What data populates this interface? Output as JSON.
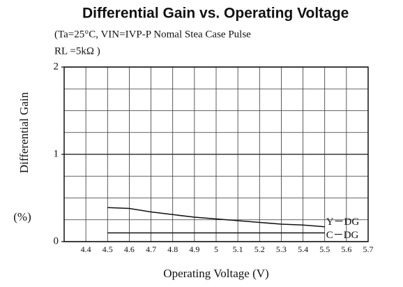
{
  "chart_data": {
    "type": "line",
    "title": "Differential Gain vs. Operating Voltage",
    "subtitle": [
      "(Ta=25°C, VIN=IVP-P Nomal Stea Case Pulse",
      "RL =5kΩ )"
    ],
    "x_label": "Operating Voltage (V)",
    "y_label": "Differential Gain",
    "y_unit": "(%)",
    "x": [
      4.5,
      4.6,
      4.7,
      4.8,
      4.9,
      5.0,
      5.1,
      5.2,
      5.3,
      5.4,
      5.5
    ],
    "series": [
      {
        "name": "Y－DG",
        "color": "#111111",
        "values": [
          0.39,
          0.38,
          0.34,
          0.31,
          0.28,
          0.26,
          0.24,
          0.22,
          0.2,
          0.19,
          0.17
        ]
      },
      {
        "name": "C－DG",
        "color": "#111111",
        "values": [
          0.1,
          0.1,
          0.1,
          0.1,
          0.1,
          0.1,
          0.1,
          0.1,
          0.1,
          0.1,
          0.1
        ]
      }
    ],
    "xlim": [
      4.3,
      5.7
    ],
    "xticks": [
      4.4,
      4.5,
      4.6,
      4.7,
      4.8,
      4.9,
      5.0,
      5.1,
      5.2,
      5.3,
      5.4,
      5.5,
      5.6,
      5.7
    ],
    "ylim": [
      0,
      2
    ],
    "yticks": [
      0,
      1,
      2
    ],
    "y_minor_ticks": [
      0.25,
      0.5,
      0.75,
      1.25,
      1.5,
      1.75
    ],
    "grid": true
  }
}
